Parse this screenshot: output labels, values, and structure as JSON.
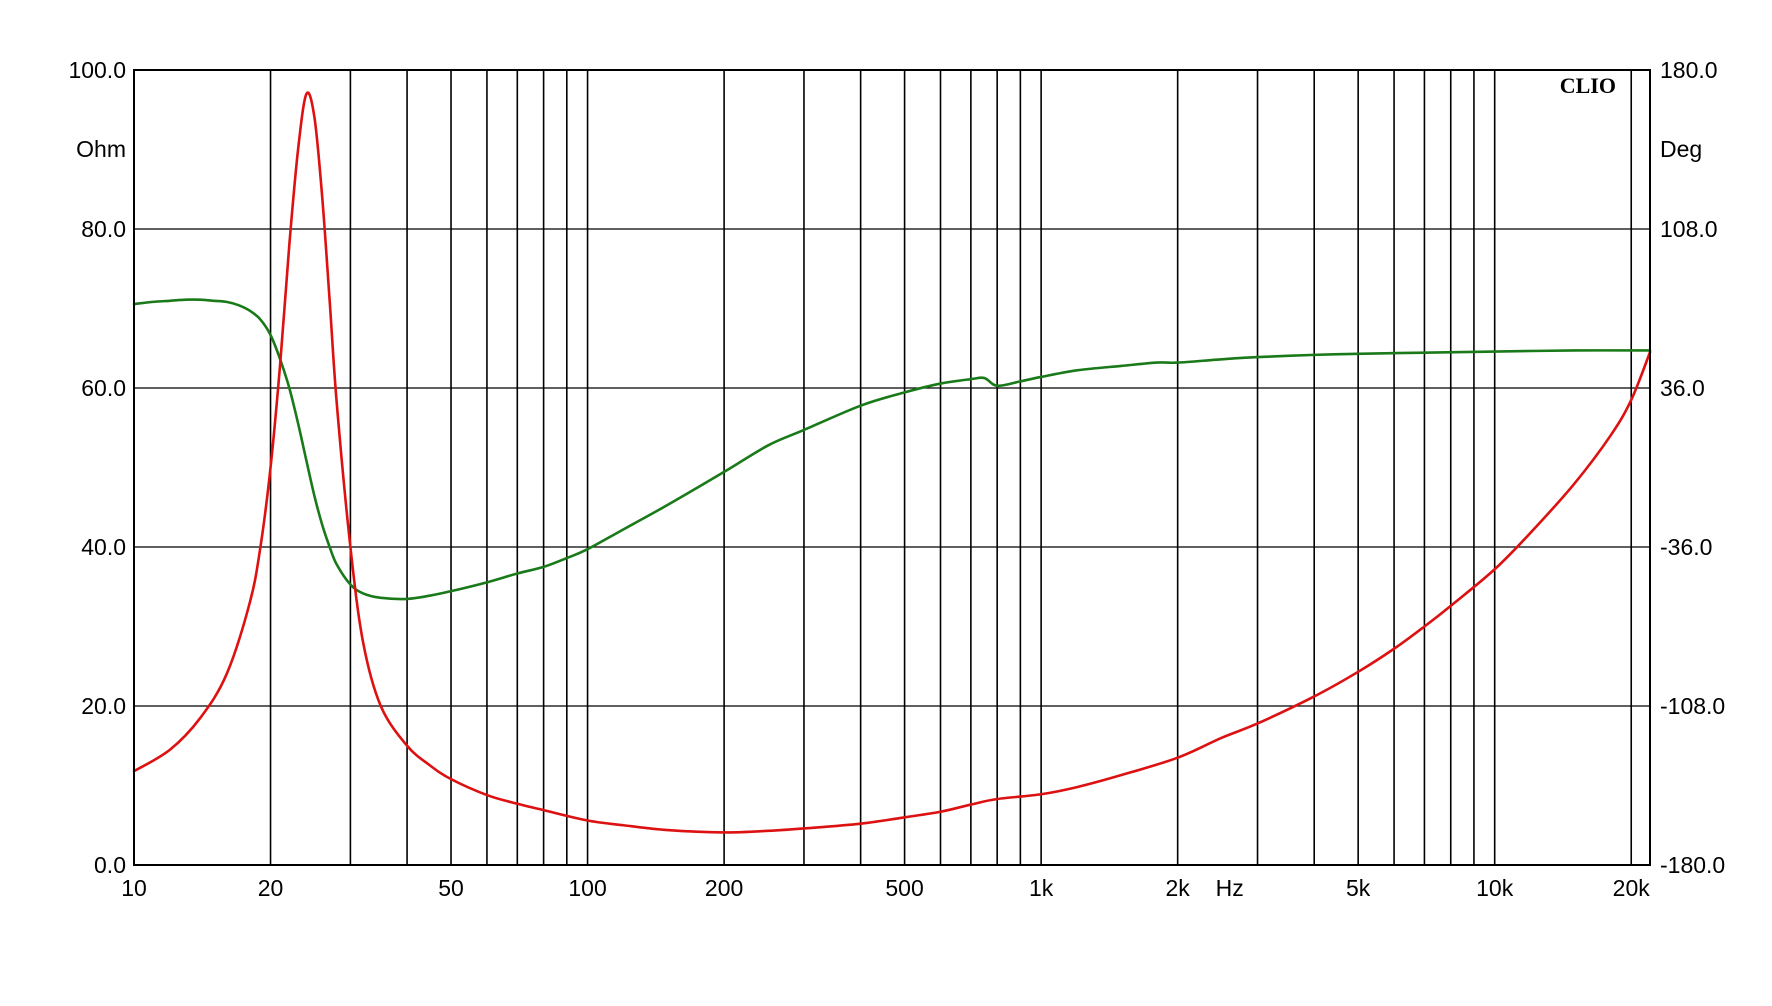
{
  "chart_data": {
    "type": "line",
    "brand": "CLIO",
    "x_axis": {
      "scale": "log",
      "unit_label": "Hz",
      "range": [
        10,
        22000
      ],
      "labeled_ticks": [
        {
          "value": 10,
          "label": "10"
        },
        {
          "value": 20,
          "label": "20"
        },
        {
          "value": 50,
          "label": "50"
        },
        {
          "value": 100,
          "label": "100"
        },
        {
          "value": 200,
          "label": "200"
        },
        {
          "value": 500,
          "label": "500"
        },
        {
          "value": 1000,
          "label": "1k"
        },
        {
          "value": 2000,
          "label": "2k"
        },
        {
          "value": 5000,
          "label": "5k"
        },
        {
          "value": 10000,
          "label": "10k"
        },
        {
          "value": 20000,
          "label": "20k"
        }
      ],
      "gridlines": [
        20,
        30,
        40,
        50,
        60,
        70,
        80,
        90,
        100,
        200,
        300,
        400,
        500,
        600,
        700,
        800,
        900,
        1000,
        2000,
        3000,
        4000,
        5000,
        6000,
        7000,
        8000,
        9000,
        10000,
        20000
      ]
    },
    "y_left": {
      "unit_label": "Ohm",
      "range": [
        0,
        100
      ],
      "ticks": [
        {
          "value": 0,
          "label": "0.0"
        },
        {
          "value": 20,
          "label": "20.0"
        },
        {
          "value": 40,
          "label": "40.0"
        },
        {
          "value": 60,
          "label": "60.0"
        },
        {
          "value": 80,
          "label": "80.0"
        },
        {
          "value": 100,
          "label": "100.0"
        }
      ]
    },
    "y_right": {
      "unit_label": "Deg",
      "range": [
        -180,
        180
      ],
      "ticks": [
        {
          "value": -180,
          "label": "-180.0"
        },
        {
          "value": -108,
          "label": "-108.0"
        },
        {
          "value": -36,
          "label": "-36.0"
        },
        {
          "value": 36,
          "label": "36.0"
        },
        {
          "value": 108,
          "label": "108.0"
        },
        {
          "value": 180,
          "label": "180.0"
        }
      ]
    },
    "grid": true,
    "series": [
      {
        "axis": "left",
        "color": "#dd1111",
        "points": [
          [
            10,
            11.8
          ],
          [
            12,
            14.5
          ],
          [
            14,
            18.5
          ],
          [
            16,
            24
          ],
          [
            18,
            33
          ],
          [
            19,
            40
          ],
          [
            20,
            50
          ],
          [
            21,
            63
          ],
          [
            22,
            78
          ],
          [
            23,
            90
          ],
          [
            24,
            97
          ],
          [
            25,
            94
          ],
          [
            26,
            84
          ],
          [
            27,
            71
          ],
          [
            28,
            58
          ],
          [
            30,
            40
          ],
          [
            32,
            28
          ],
          [
            35,
            20
          ],
          [
            40,
            15
          ],
          [
            45,
            12.5
          ],
          [
            50,
            10.8
          ],
          [
            60,
            8.8
          ],
          [
            70,
            7.7
          ],
          [
            80,
            6.9
          ],
          [
            100,
            5.6
          ],
          [
            120,
            5
          ],
          [
            150,
            4.4
          ],
          [
            200,
            4.1
          ],
          [
            250,
            4.3
          ],
          [
            300,
            4.6
          ],
          [
            400,
            5.2
          ],
          [
            500,
            6
          ],
          [
            600,
            6.7
          ],
          [
            700,
            7.6
          ],
          [
            800,
            8.3
          ],
          [
            1000,
            8.9
          ],
          [
            1200,
            9.8
          ],
          [
            1500,
            11.3
          ],
          [
            2000,
            13.5
          ],
          [
            2500,
            16
          ],
          [
            3000,
            17.8
          ],
          [
            4000,
            21.2
          ],
          [
            5000,
            24.3
          ],
          [
            6000,
            27.2
          ],
          [
            7000,
            30
          ],
          [
            8000,
            32.6
          ],
          [
            10000,
            37.2
          ],
          [
            12000,
            41.8
          ],
          [
            15000,
            48
          ],
          [
            18000,
            54
          ],
          [
            20000,
            58.5
          ],
          [
            22000,
            64.5
          ]
        ]
      },
      {
        "axis": "right",
        "color": "#1a7a1a",
        "points": [
          [
            10,
            74
          ],
          [
            11,
            75
          ],
          [
            12,
            75.5
          ],
          [
            13,
            76
          ],
          [
            14,
            76
          ],
          [
            15,
            75.5
          ],
          [
            16,
            75
          ],
          [
            17,
            73.5
          ],
          [
            18,
            71
          ],
          [
            19,
            67
          ],
          [
            20,
            60
          ],
          [
            21,
            49
          ],
          [
            22,
            36
          ],
          [
            23,
            20
          ],
          [
            24,
            3
          ],
          [
            25,
            -13
          ],
          [
            26,
            -26
          ],
          [
            27,
            -36
          ],
          [
            28,
            -44
          ],
          [
            30,
            -53
          ],
          [
            32,
            -57
          ],
          [
            35,
            -59
          ],
          [
            40,
            -59.5
          ],
          [
            45,
            -58
          ],
          [
            50,
            -56
          ],
          [
            60,
            -52
          ],
          [
            70,
            -48
          ],
          [
            80,
            -45
          ],
          [
            90,
            -41
          ],
          [
            100,
            -37
          ],
          [
            120,
            -28
          ],
          [
            150,
            -17
          ],
          [
            200,
            -2
          ],
          [
            250,
            10
          ],
          [
            300,
            17
          ],
          [
            400,
            28
          ],
          [
            500,
            34
          ],
          [
            600,
            38
          ],
          [
            700,
            40
          ],
          [
            750,
            40.5
          ],
          [
            800,
            37
          ],
          [
            900,
            39
          ],
          [
            1000,
            41
          ],
          [
            1200,
            44
          ],
          [
            1500,
            46
          ],
          [
            1800,
            47.5
          ],
          [
            2000,
            47.5
          ],
          [
            2500,
            49
          ],
          [
            3000,
            50
          ],
          [
            4000,
            51
          ],
          [
            5000,
            51.5
          ],
          [
            7000,
            52
          ],
          [
            10000,
            52.5
          ],
          [
            15000,
            53
          ],
          [
            22000,
            53
          ]
        ]
      }
    ]
  }
}
